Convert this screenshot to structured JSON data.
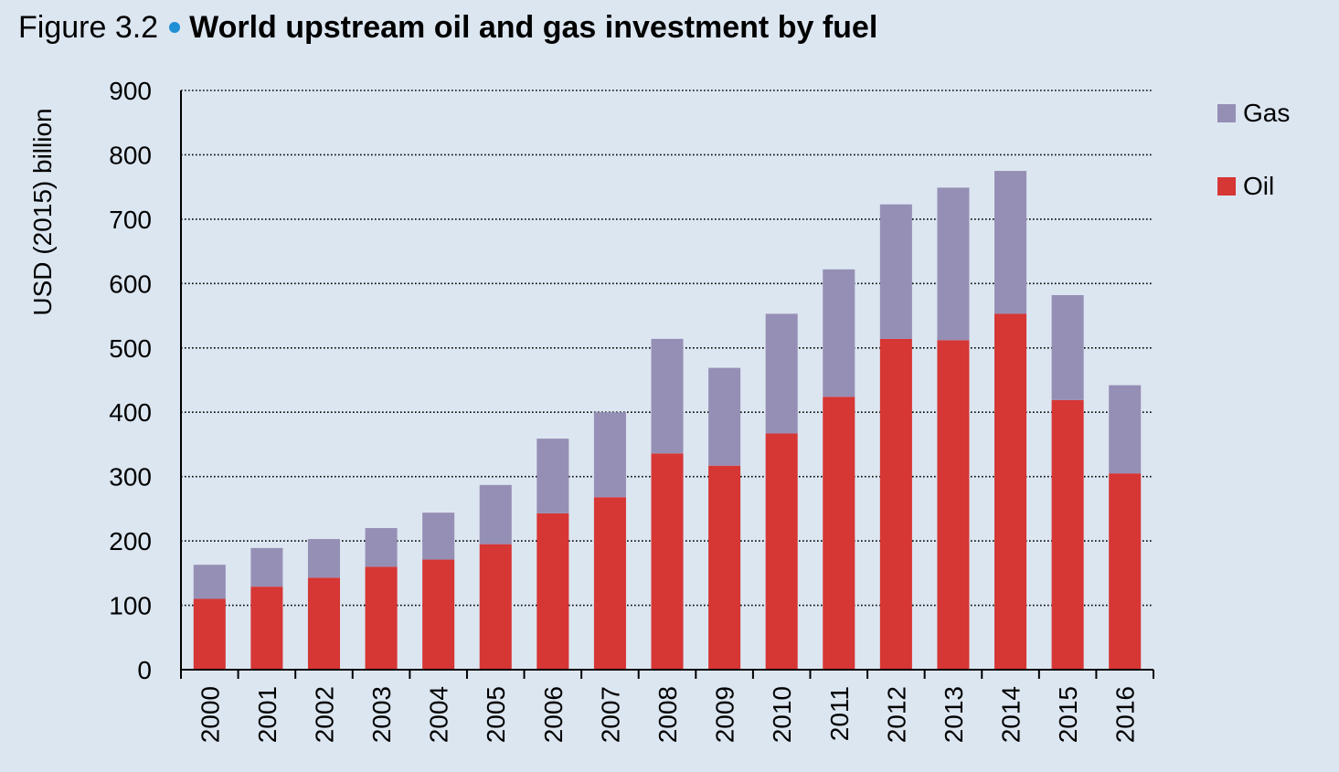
{
  "figure": {
    "number": "Figure 3.2",
    "title": "World upstream oil and gas investment by fuel",
    "dot_color": "#1f8fd6"
  },
  "chart_data": {
    "type": "bar",
    "stacked": true,
    "categories": [
      "2000",
      "2001",
      "2002",
      "2003",
      "2004",
      "2005",
      "2006",
      "2007",
      "2008",
      "2009",
      "2010",
      "2011",
      "2012",
      "2013",
      "2014",
      "2015",
      "2016"
    ],
    "series": [
      {
        "name": "Oil",
        "color": "#d63634",
        "values": [
          110,
          129,
          143,
          160,
          171,
          195,
          243,
          268,
          336,
          317,
          367,
          424,
          514,
          512,
          553,
          419,
          305
        ]
      },
      {
        "name": "Gas",
        "color": "#968fb5",
        "values": [
          53,
          60,
          60,
          60,
          73,
          92,
          116,
          132,
          178,
          152,
          186,
          198,
          209,
          237,
          222,
          163,
          137
        ]
      }
    ],
    "xlabel": "",
    "ylabel": "USD (2015) billion",
    "ylim": [
      0,
      900
    ],
    "yticks": [
      0,
      100,
      200,
      300,
      400,
      500,
      600,
      700,
      800,
      900
    ],
    "grid": true,
    "legend": {
      "position": "top-right",
      "order": [
        "Gas",
        "Oil"
      ]
    }
  }
}
